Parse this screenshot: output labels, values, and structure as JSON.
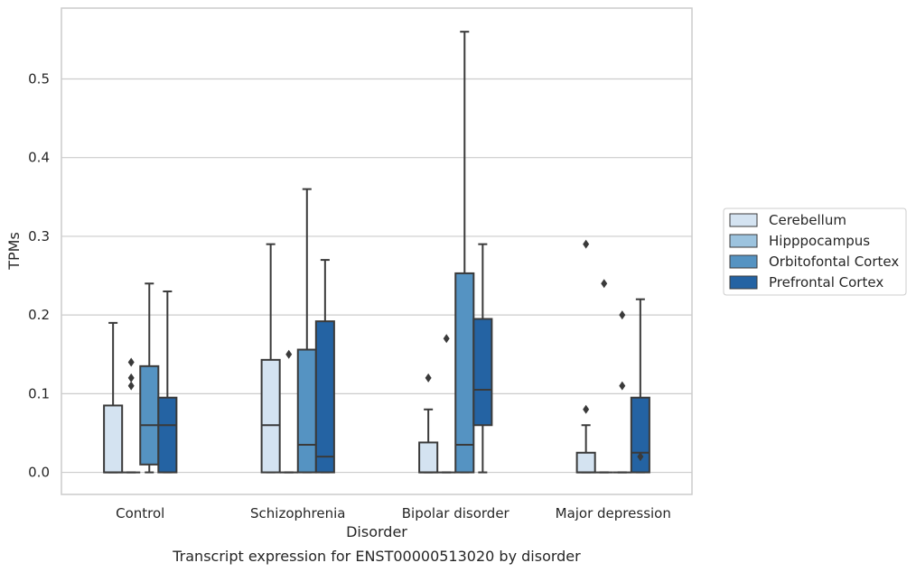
{
  "caption": "Transcript expression for ENST00000513020 by disorder",
  "chart_data": {
    "type": "box",
    "xlabel": "Disorder",
    "ylabel": "TPMs",
    "ylim": [
      -0.028,
      0.59
    ],
    "yticks": [
      0.0,
      0.1,
      0.2,
      0.3,
      0.4,
      0.5
    ],
    "ytick_labels": [
      "0.0",
      "0.1",
      "0.2",
      "0.3",
      "0.4",
      "0.5"
    ],
    "grid": "horizontal",
    "legend_position": "right",
    "categories": [
      "Control",
      "Schizophrenia",
      "Bipolar disorder",
      "Major depression"
    ],
    "series": [
      {
        "name": "Cerebellum",
        "color": "#d4e3f1",
        "boxes": [
          {
            "min": 0.0,
            "q1": 0.0,
            "median": 0.0,
            "q3": 0.085,
            "max": 0.19,
            "outliers": []
          },
          {
            "min": 0.0,
            "q1": 0.0,
            "median": 0.06,
            "q3": 0.143,
            "max": 0.29,
            "outliers": []
          },
          {
            "min": 0.0,
            "q1": 0.0,
            "median": 0.0,
            "q3": 0.038,
            "max": 0.08,
            "outliers": [
              0.12
            ]
          },
          {
            "min": 0.0,
            "q1": 0.0,
            "median": 0.0,
            "q3": 0.025,
            "max": 0.06,
            "outliers": [
              0.08,
              0.29
            ]
          }
        ]
      },
      {
        "name": "Hipppocampus",
        "color": "#9cc3de",
        "boxes": [
          {
            "min": 0.0,
            "q1": 0.0,
            "median": 0.0,
            "q3": 0.0,
            "max": 0.0,
            "outliers": [
              0.11,
              0.12,
              0.14
            ]
          },
          {
            "min": 0.0,
            "q1": 0.0,
            "median": 0.0,
            "q3": 0.0,
            "max": 0.0,
            "outliers": [
              0.15
            ]
          },
          {
            "min": 0.0,
            "q1": 0.0,
            "median": 0.0,
            "q3": 0.0,
            "max": 0.0,
            "outliers": [
              0.17
            ]
          },
          {
            "min": 0.0,
            "q1": 0.0,
            "median": 0.0,
            "q3": 0.0,
            "max": 0.0,
            "outliers": [
              0.24
            ]
          }
        ]
      },
      {
        "name": "Orbitofontal Cortex",
        "color": "#5593c2",
        "boxes": [
          {
            "min": 0.0,
            "q1": 0.01,
            "median": 0.06,
            "q3": 0.135,
            "max": 0.24,
            "outliers": []
          },
          {
            "min": 0.0,
            "q1": 0.0,
            "median": 0.035,
            "q3": 0.156,
            "max": 0.36,
            "outliers": []
          },
          {
            "min": 0.0,
            "q1": 0.0,
            "median": 0.035,
            "q3": 0.253,
            "max": 0.56,
            "outliers": []
          },
          {
            "min": 0.0,
            "q1": 0.0,
            "median": 0.0,
            "q3": 0.0,
            "max": 0.0,
            "outliers": [
              0.11,
              0.2
            ]
          }
        ]
      },
      {
        "name": "Prefrontal Cortex",
        "color": "#2463a3",
        "boxes": [
          {
            "min": 0.0,
            "q1": 0.0,
            "median": 0.06,
            "q3": 0.095,
            "max": 0.23,
            "outliers": []
          },
          {
            "min": 0.0,
            "q1": 0.0,
            "median": 0.02,
            "q3": 0.192,
            "max": 0.27,
            "outliers": []
          },
          {
            "min": 0.0,
            "q1": 0.06,
            "median": 0.105,
            "q3": 0.195,
            "max": 0.29,
            "outliers": []
          },
          {
            "min": 0.0,
            "q1": 0.0,
            "median": 0.025,
            "q3": 0.095,
            "max": 0.22,
            "outliers": [
              0.02
            ]
          }
        ]
      }
    ]
  }
}
